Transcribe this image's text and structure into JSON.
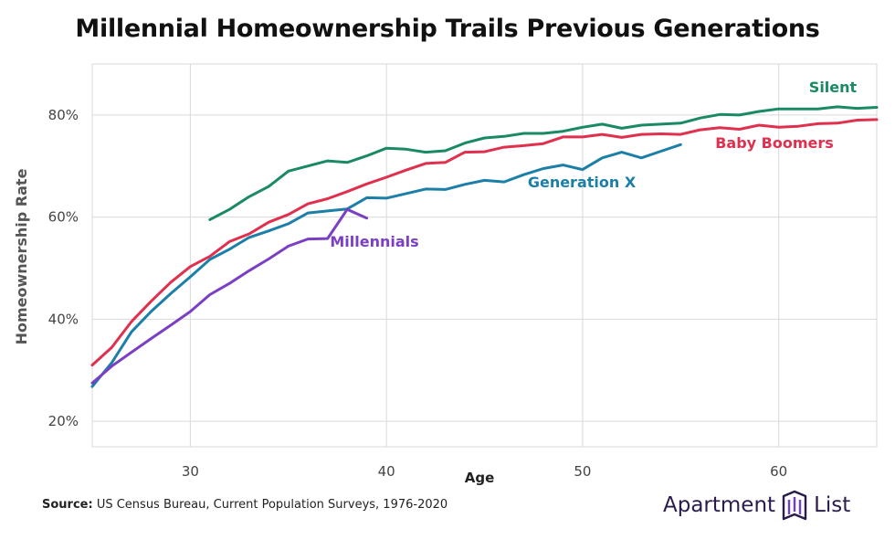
{
  "title": "Millennial Homeownership Trails Previous Generations",
  "source_label": "Source:",
  "source_text": "US Census Bureau, Current Population Surveys, 1976-2020",
  "logo": {
    "word1": "Apartment",
    "word2": "List",
    "color": "#2a1b4d"
  },
  "chart_data": {
    "type": "line",
    "title": "Millennial Homeownership Trails Previous Generations",
    "xlabel": "Age",
    "ylabel": "Homeownership Rate",
    "xlim": [
      25,
      65
    ],
    "ylim": [
      15,
      90
    ],
    "xticks": [
      30,
      40,
      50,
      60
    ],
    "xtick_labels": [
      "30",
      "40",
      "50",
      "60"
    ],
    "yticks": [
      20,
      40,
      60,
      80
    ],
    "ytick_labels": [
      "20%",
      "40%",
      "60%",
      "80%"
    ],
    "grid": true,
    "legend": "inline labels",
    "series": [
      {
        "name": "Silent",
        "color": "#1a8a63",
        "x": [
          31,
          32,
          33,
          34,
          35,
          36,
          37,
          38,
          39,
          40,
          41,
          42,
          43,
          44,
          45,
          46,
          47,
          48,
          49,
          50,
          51,
          52,
          53,
          54,
          55,
          56,
          57,
          58,
          59,
          60,
          61,
          62,
          63,
          64,
          65
        ],
        "y": [
          59.5,
          61.5,
          64,
          66,
          69,
          70,
          71,
          70.7,
          72,
          73.5,
          73.3,
          72.7,
          73,
          74.5,
          75.5,
          75.8,
          76.4,
          76.4,
          76.8,
          77.6,
          78.2,
          77.4,
          78,
          78.2,
          78.4,
          79.4,
          80.1,
          80,
          80.7,
          81.2,
          81.2,
          81.2,
          81.6,
          81.3,
          81.5
        ]
      },
      {
        "name": "Baby Boomers",
        "color": "#e0304e",
        "x": [
          25,
          26,
          27,
          28,
          29,
          30,
          31,
          32,
          33,
          34,
          35,
          36,
          37,
          38,
          39,
          40,
          41,
          42,
          43,
          44,
          45,
          46,
          47,
          48,
          49,
          50,
          51,
          52,
          53,
          54,
          55,
          56,
          57,
          58,
          59,
          60,
          61,
          62,
          63,
          64,
          65
        ],
        "y": [
          31,
          34.5,
          39.5,
          43.5,
          47.2,
          50.3,
          52.3,
          55.2,
          56.7,
          59,
          60.5,
          62.6,
          63.6,
          65,
          66.5,
          67.8,
          69.2,
          70.5,
          70.7,
          72.7,
          72.8,
          73.7,
          74,
          74.4,
          75.7,
          75.7,
          76.2,
          75.6,
          76.2,
          76.3,
          76.2,
          77.1,
          77.5,
          77.2,
          78,
          77.6,
          77.8,
          78.3,
          78.4,
          79,
          79.1
        ]
      },
      {
        "name": "Generation X",
        "color": "#1c7fa8",
        "x": [
          25,
          26,
          27,
          28,
          29,
          30,
          31,
          32,
          33,
          34,
          35,
          36,
          37,
          38,
          39,
          40,
          41,
          42,
          43,
          44,
          45,
          46,
          47,
          48,
          49,
          50,
          51,
          52,
          53,
          54,
          55
        ],
        "y": [
          26.8,
          31.5,
          37.5,
          41.5,
          45,
          48.3,
          51.7,
          53.7,
          56,
          57.3,
          58.7,
          60.8,
          61.2,
          61.6,
          63.8,
          63.7,
          64.6,
          65.5,
          65.4,
          66.4,
          67.2,
          66.9,
          68.3,
          69.5,
          70.2,
          69.3,
          71.6,
          72.7,
          71.6,
          72.9,
          74.2
        ]
      },
      {
        "name": "Millennials",
        "color": "#7b3fc4",
        "x": [
          25,
          26,
          27,
          28,
          29,
          30,
          31,
          32,
          33,
          34,
          35,
          36,
          37,
          38,
          39
        ],
        "y": [
          27.5,
          30.8,
          33.5,
          36.2,
          38.8,
          41.5,
          44.8,
          47,
          49.5,
          51.8,
          54.3,
          55.7,
          55.8,
          61.5,
          59.8
        ]
      }
    ]
  },
  "series_label_positions": {
    "Silent": "near age 62, above line",
    "Baby Boomers": "near age 57, below line",
    "Generation X": "near age 49, below line",
    "Millennials": "near age 39, below line"
  }
}
